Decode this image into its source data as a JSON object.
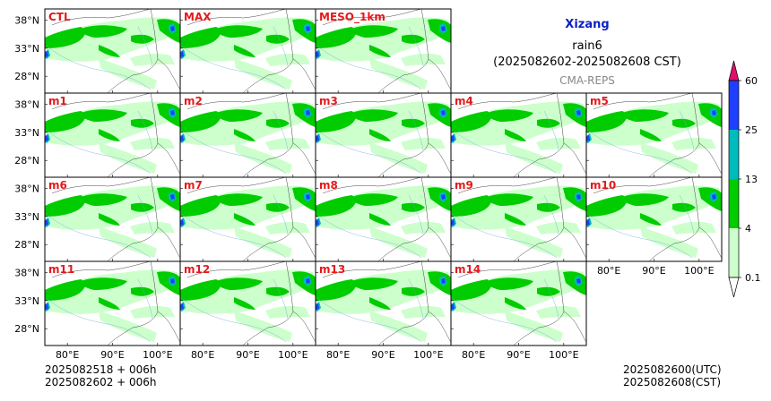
{
  "title": {
    "region": "Xizang",
    "variable": "rain6",
    "period": "(2025082602-2025082608 CST)",
    "source": "CMA-REPS"
  },
  "map_extent": {
    "lon": [
      75,
      105
    ],
    "lat": [
      25,
      40
    ]
  },
  "axes": {
    "lat_ticks": [
      28,
      33,
      38
    ],
    "lat_labels": [
      "28°N",
      "33°N",
      "38°N"
    ],
    "lon_ticks": [
      80,
      90,
      100
    ],
    "lon_labels": [
      "80°E",
      "90°E",
      "100°E"
    ]
  },
  "colorbar": {
    "levels": [
      "0.1",
      "4",
      "13",
      "25",
      "60"
    ],
    "colors": [
      "#ccffcc",
      "#00cc00",
      "#00bbbb",
      "#1f3fff"
    ],
    "under_color": "#ffffff",
    "over_color": "#e0106a"
  },
  "panels": [
    {
      "label": "CTL",
      "row": 0,
      "col": 0
    },
    {
      "label": "MAX",
      "row": 0,
      "col": 1
    },
    {
      "label": "MESO_1km",
      "row": 0,
      "col": 2
    },
    {
      "label": "m1",
      "row": 1,
      "col": 0
    },
    {
      "label": "m2",
      "row": 1,
      "col": 1
    },
    {
      "label": "m3",
      "row": 1,
      "col": 2
    },
    {
      "label": "m4",
      "row": 1,
      "col": 3
    },
    {
      "label": "m5",
      "row": 1,
      "col": 4
    },
    {
      "label": "m6",
      "row": 2,
      "col": 0
    },
    {
      "label": "m7",
      "row": 2,
      "col": 1
    },
    {
      "label": "m8",
      "row": 2,
      "col": 2
    },
    {
      "label": "m9",
      "row": 2,
      "col": 3
    },
    {
      "label": "m10",
      "row": 2,
      "col": 4
    },
    {
      "label": "m11",
      "row": 3,
      "col": 0
    },
    {
      "label": "m12",
      "row": 3,
      "col": 1
    },
    {
      "label": "m13",
      "row": 3,
      "col": 2
    },
    {
      "label": "m14",
      "row": 3,
      "col": 3
    }
  ],
  "footer": {
    "init_line1": "2025082518  +  006h",
    "init_line2": "2025082602  +  006h",
    "valid_utc": "2025082600(UTC)",
    "valid_cst": "2025082608(CST)"
  }
}
